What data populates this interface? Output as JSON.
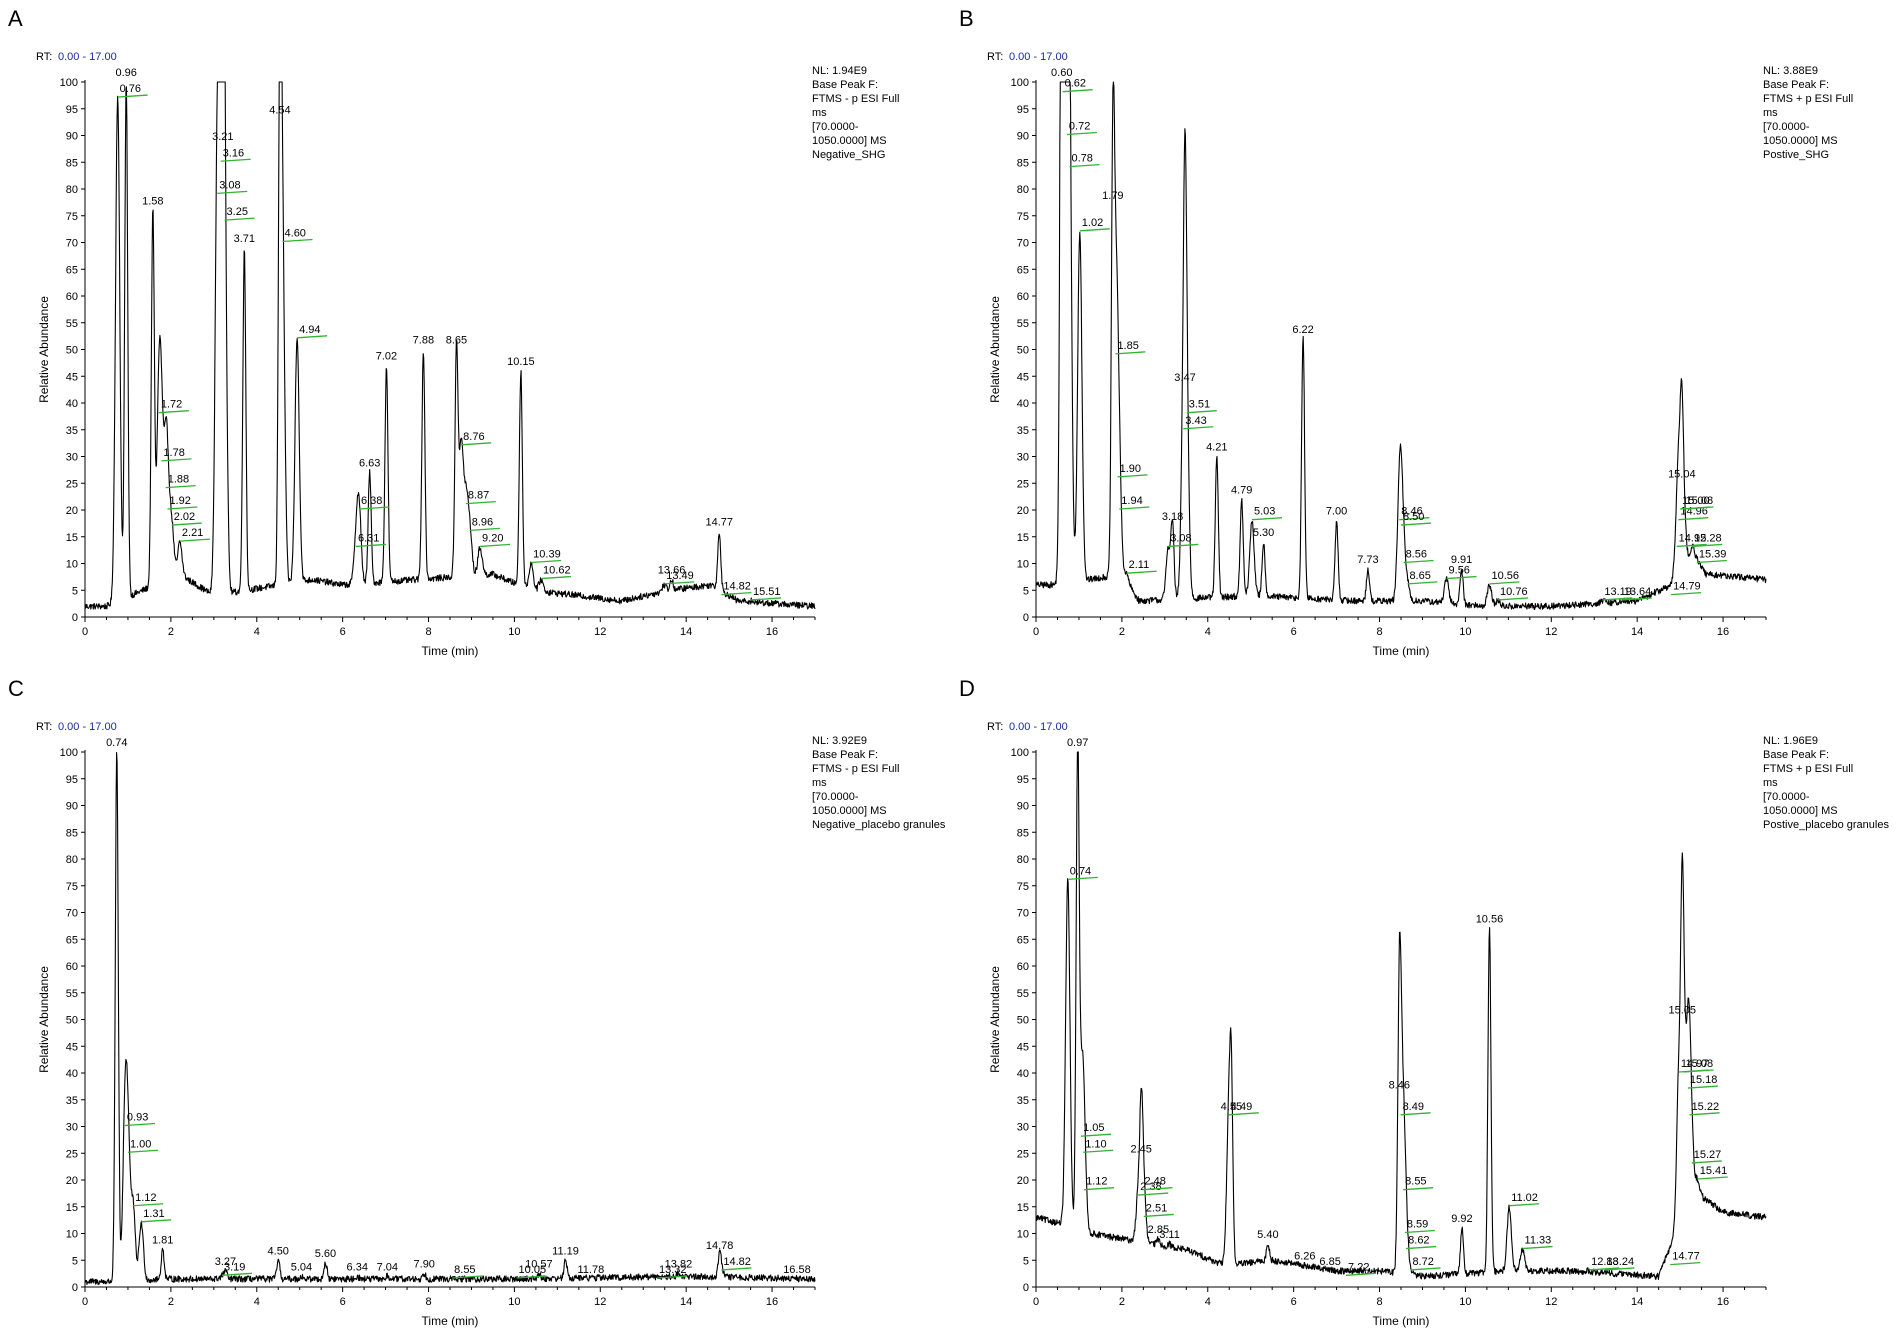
{
  "axis": {
    "xlabel": "Time (min)",
    "ylabel": "Relative Abundance",
    "rt_label": "RT:",
    "x_ticks": [
      0,
      2,
      4,
      6,
      8,
      10,
      12,
      14,
      16
    ],
    "y_ticks": [
      0,
      5,
      10,
      15,
      20,
      25,
      30,
      35,
      40,
      45,
      50,
      55,
      60,
      65,
      70,
      75,
      80,
      85,
      90,
      95,
      100
    ],
    "colors": {
      "trace": "#000000",
      "marker": "#2fb52f",
      "rt_range": "#1a2a9c"
    }
  },
  "chart_data": [
    {
      "panel": "A",
      "type": "line",
      "rt_range": "0.00 - 17.00",
      "info": [
        "NL: 1.94E9",
        "Base Peak F:",
        "FTMS - p ESI Full",
        "ms",
        "[70.0000-",
        "1050.0000]  MS",
        "Negative_SHG"
      ],
      "xlim": [
        0,
        17
      ],
      "ylim": [
        0,
        100
      ],
      "baseline": [
        [
          0,
          2
        ],
        [
          0.5,
          2
        ],
        [
          2.2,
          8
        ],
        [
          2.8,
          5
        ],
        [
          3.0,
          4
        ],
        [
          5.3,
          7
        ],
        [
          6.0,
          6
        ],
        [
          9.5,
          8
        ],
        [
          10.4,
          5
        ],
        [
          11.5,
          4
        ],
        [
          12.5,
          3
        ],
        [
          13.6,
          5
        ],
        [
          14.6,
          6
        ],
        [
          15.2,
          3
        ],
        [
          17,
          2
        ]
      ],
      "peaks": [
        {
          "label": "0.76",
          "x": 0.76,
          "y": 97,
          "m": 1
        },
        {
          "label": "0.96",
          "x": 0.96,
          "y": 100,
          "m": 0
        },
        {
          "label": "1.58",
          "x": 1.58,
          "y": 76,
          "m": 0
        },
        {
          "label": "1.72",
          "x": 1.72,
          "y": 38,
          "m": 1
        },
        {
          "label": "1.78",
          "x": 1.78,
          "y": 29,
          "m": 1
        },
        {
          "label": "1.88",
          "x": 1.88,
          "y": 24,
          "m": 1
        },
        {
          "label": "1.92",
          "x": 1.92,
          "y": 20,
          "m": 1
        },
        {
          "label": "2.02",
          "x": 2.02,
          "y": 17,
          "m": 1
        },
        {
          "label": "2.21",
          "x": 2.21,
          "y": 14,
          "m": 1
        },
        {
          "label": "3.08",
          "x": 3.08,
          "y": 79,
          "m": 1
        },
        {
          "label": "3.16",
          "x": 3.16,
          "y": 85,
          "m": 1
        },
        {
          "label": "3.21",
          "x": 3.21,
          "y": 88,
          "m": 0
        },
        {
          "label": "3.25",
          "x": 3.25,
          "y": 74,
          "m": 1
        },
        {
          "label": "3.71",
          "x": 3.71,
          "y": 69,
          "m": 0
        },
        {
          "label": "4.54",
          "x": 4.54,
          "y": 93,
          "m": 0
        },
        {
          "label": "4.60",
          "x": 4.6,
          "y": 70,
          "m": 1
        },
        {
          "label": "4.94",
          "x": 4.94,
          "y": 52,
          "m": 1
        },
        {
          "label": "6.31",
          "x": 6.31,
          "y": 13,
          "m": 1
        },
        {
          "label": "6.38",
          "x": 6.38,
          "y": 20,
          "m": 1
        },
        {
          "label": "6.63",
          "x": 6.63,
          "y": 27,
          "m": 0
        },
        {
          "label": "7.02",
          "x": 7.02,
          "y": 47,
          "m": 0
        },
        {
          "label": "7.88",
          "x": 7.88,
          "y": 50,
          "m": 0
        },
        {
          "label": "8.65",
          "x": 8.65,
          "y": 50,
          "m": 0
        },
        {
          "label": "8.76",
          "x": 8.76,
          "y": 32,
          "m": 1
        },
        {
          "label": "8.87",
          "x": 8.87,
          "y": 21,
          "m": 1
        },
        {
          "label": "8.96",
          "x": 8.96,
          "y": 16,
          "m": 1
        },
        {
          "label": "9.20",
          "x": 9.2,
          "y": 13,
          "m": 1
        },
        {
          "label": "10.15",
          "x": 10.15,
          "y": 46,
          "m": 0
        },
        {
          "label": "10.39",
          "x": 10.39,
          "y": 10,
          "m": 1
        },
        {
          "label": "10.62",
          "x": 10.62,
          "y": 7,
          "m": 1
        },
        {
          "label": "13.49",
          "x": 13.49,
          "y": 6,
          "m": 1
        },
        {
          "label": "13.66",
          "x": 13.66,
          "y": 7,
          "m": 0
        },
        {
          "label": "14.77",
          "x": 14.77,
          "y": 16,
          "m": 0
        },
        {
          "label": "14.82",
          "x": 14.82,
          "y": 4,
          "m": 1
        },
        {
          "label": "15.51",
          "x": 15.51,
          "y": 3,
          "m": 1
        }
      ]
    },
    {
      "panel": "B",
      "type": "line",
      "rt_range": "0.00 - 17.00",
      "info": [
        "NL: 3.88E9",
        "Base Peak F:",
        "FTMS + p ESI Full",
        "ms",
        "[70.0000-",
        "1050.0000]  MS",
        "Postive_SHG"
      ],
      "xlim": [
        0,
        17
      ],
      "ylim": [
        0,
        100
      ],
      "baseline": [
        [
          0,
          6
        ],
        [
          0.5,
          6
        ],
        [
          2.0,
          8
        ],
        [
          2.4,
          3
        ],
        [
          5.0,
          4
        ],
        [
          7.5,
          3
        ],
        [
          9.0,
          3
        ],
        [
          10.5,
          2
        ],
        [
          12.0,
          2
        ],
        [
          14.0,
          3
        ],
        [
          14.8,
          6
        ],
        [
          15.3,
          12
        ],
        [
          15.6,
          8
        ],
        [
          17,
          7
        ]
      ],
      "peaks": [
        {
          "label": "0.60",
          "x": 0.6,
          "y": 100,
          "m": 0
        },
        {
          "label": "0.62",
          "x": 0.62,
          "y": 98,
          "m": 1
        },
        {
          "label": "0.72",
          "x": 0.72,
          "y": 90,
          "m": 1
        },
        {
          "label": "0.78",
          "x": 0.78,
          "y": 84,
          "m": 1
        },
        {
          "label": "1.02",
          "x": 1.02,
          "y": 72,
          "m": 1
        },
        {
          "label": "1.79",
          "x": 1.79,
          "y": 77,
          "m": 0
        },
        {
          "label": "1.85",
          "x": 1.85,
          "y": 49,
          "m": 1
        },
        {
          "label": "1.90",
          "x": 1.9,
          "y": 26,
          "m": 1
        },
        {
          "label": "1.94",
          "x": 1.94,
          "y": 20,
          "m": 1
        },
        {
          "label": "2.11",
          "x": 2.11,
          "y": 8,
          "m": 1
        },
        {
          "label": "3.08",
          "x": 3.08,
          "y": 13,
          "m": 1
        },
        {
          "label": "3.18",
          "x": 3.18,
          "y": 17,
          "m": 0
        },
        {
          "label": "3.43",
          "x": 3.43,
          "y": 35,
          "m": 1
        },
        {
          "label": "3.47",
          "x": 3.47,
          "y": 43,
          "m": 0
        },
        {
          "label": "3.51",
          "x": 3.51,
          "y": 38,
          "m": 1
        },
        {
          "label": "4.21",
          "x": 4.21,
          "y": 30,
          "m": 0
        },
        {
          "label": "4.79",
          "x": 4.79,
          "y": 22,
          "m": 0
        },
        {
          "label": "5.03",
          "x": 5.03,
          "y": 18,
          "m": 1
        },
        {
          "label": "5.30",
          "x": 5.3,
          "y": 14,
          "m": 0
        },
        {
          "label": "6.22",
          "x": 6.22,
          "y": 52,
          "m": 0
        },
        {
          "label": "7.00",
          "x": 7.0,
          "y": 18,
          "m": 0
        },
        {
          "label": "7.73",
          "x": 7.73,
          "y": 9,
          "m": 0
        },
        {
          "label": "8.46",
          "x": 8.46,
          "y": 18,
          "m": 1
        },
        {
          "label": "8.50",
          "x": 8.5,
          "y": 17,
          "m": 1
        },
        {
          "label": "8.56",
          "x": 8.56,
          "y": 10,
          "m": 1
        },
        {
          "label": "8.65",
          "x": 8.65,
          "y": 6,
          "m": 1
        },
        {
          "label": "9.56",
          "x": 9.56,
          "y": 7,
          "m": 1
        },
        {
          "label": "9.91",
          "x": 9.91,
          "y": 9,
          "m": 0
        },
        {
          "label": "10.56",
          "x": 10.56,
          "y": 6,
          "m": 1
        },
        {
          "label": "10.76",
          "x": 10.76,
          "y": 3,
          "m": 1
        },
        {
          "label": "13.19",
          "x": 13.19,
          "y": 3,
          "m": 1
        },
        {
          "label": "13.64",
          "x": 13.64,
          "y": 3,
          "m": 1
        },
        {
          "label": "14.79",
          "x": 14.79,
          "y": 4,
          "m": 1
        },
        {
          "label": "14.92",
          "x": 14.92,
          "y": 13,
          "m": 1
        },
        {
          "label": "14.96",
          "x": 14.96,
          "y": 18,
          "m": 1
        },
        {
          "label": "15.00",
          "x": 15.0,
          "y": 20,
          "m": 1
        },
        {
          "label": "15.04",
          "x": 15.04,
          "y": 25,
          "m": 0
        },
        {
          "label": "15.08",
          "x": 15.08,
          "y": 20,
          "m": 1
        },
        {
          "label": "15.28",
          "x": 15.28,
          "y": 13,
          "m": 1
        },
        {
          "label": "15.39",
          "x": 15.39,
          "y": 10,
          "m": 1
        }
      ]
    },
    {
      "panel": "C",
      "type": "line",
      "rt_range": "0.00 - 17.00",
      "info": [
        "NL: 3.92E9",
        "Base Peak F:",
        "FTMS - p ESI Full",
        "ms",
        "[70.0000-",
        "1050.0000]  MS",
        "Negative_placebo granules"
      ],
      "xlim": [
        0,
        17
      ],
      "ylim": [
        0,
        100
      ],
      "baseline": [
        [
          0,
          1
        ],
        [
          0.6,
          1
        ],
        [
          2.0,
          1.5
        ],
        [
          6.0,
          1.5
        ],
        [
          10.0,
          1.5
        ],
        [
          14.0,
          2
        ],
        [
          17,
          1.5
        ]
      ],
      "peaks": [
        {
          "label": "0.74",
          "x": 0.74,
          "y": 100,
          "m": 0
        },
        {
          "label": "0.93",
          "x": 0.93,
          "y": 30,
          "m": 1
        },
        {
          "label": "1.00",
          "x": 1.0,
          "y": 25,
          "m": 1
        },
        {
          "label": "1.12",
          "x": 1.12,
          "y": 15,
          "m": 1
        },
        {
          "label": "1.31",
          "x": 1.31,
          "y": 12,
          "m": 1
        },
        {
          "label": "1.81",
          "x": 1.81,
          "y": 7,
          "m": 0
        },
        {
          "label": "3.19",
          "x": 3.19,
          "y": 2,
          "m": 1
        },
        {
          "label": "3.27",
          "x": 3.27,
          "y": 3,
          "m": 0
        },
        {
          "label": "4.50",
          "x": 4.5,
          "y": 5,
          "m": 0
        },
        {
          "label": "5.04",
          "x": 5.04,
          "y": 2,
          "m": 0
        },
        {
          "label": "5.60",
          "x": 5.6,
          "y": 4.5,
          "m": 0
        },
        {
          "label": "6.34",
          "x": 6.34,
          "y": 2,
          "m": 0
        },
        {
          "label": "7.04",
          "x": 7.04,
          "y": 2,
          "m": 0
        },
        {
          "label": "7.90",
          "x": 7.9,
          "y": 2.5,
          "m": 0
        },
        {
          "label": "8.55",
          "x": 8.55,
          "y": 1.5,
          "m": 1
        },
        {
          "label": "10.05",
          "x": 10.05,
          "y": 1.5,
          "m": 1
        },
        {
          "label": "10.57",
          "x": 10.57,
          "y": 2.5,
          "m": 0
        },
        {
          "label": "11.19",
          "x": 11.19,
          "y": 5,
          "m": 0
        },
        {
          "label": "11.78",
          "x": 11.78,
          "y": 1.5,
          "m": 0
        },
        {
          "label": "13.32",
          "x": 13.32,
          "y": 1.5,
          "m": 1
        },
        {
          "label": "13.82",
          "x": 13.82,
          "y": 2.5,
          "m": 0
        },
        {
          "label": "14.78",
          "x": 14.78,
          "y": 6,
          "m": 0
        },
        {
          "label": "14.82",
          "x": 14.82,
          "y": 3,
          "m": 1
        },
        {
          "label": "16.58",
          "x": 16.58,
          "y": 1.5,
          "m": 0
        }
      ]
    },
    {
      "panel": "D",
      "type": "line",
      "rt_range": "0.00 - 17.00",
      "info": [
        "NL: 1.96E9",
        "Base Peak F:",
        "FTMS + p ESI Full",
        "ms",
        "[70.0000-",
        "1050.0000]  MS",
        "Postive_placebo granules"
      ],
      "xlim": [
        0,
        17
      ],
      "ylim": [
        0,
        100
      ],
      "baseline": [
        [
          0,
          13
        ],
        [
          0.5,
          12
        ],
        [
          1.3,
          10
        ],
        [
          2.0,
          9
        ],
        [
          3.5,
          7
        ],
        [
          4.4,
          4
        ],
        [
          5.5,
          5
        ],
        [
          7.0,
          3
        ],
        [
          8.0,
          3
        ],
        [
          9.0,
          2
        ],
        [
          11.0,
          3
        ],
        [
          12.5,
          3
        ],
        [
          14.5,
          2
        ],
        [
          15.3,
          18
        ],
        [
          16.0,
          14
        ],
        [
          17,
          13
        ]
      ],
      "peaks": [
        {
          "label": "0.74",
          "x": 0.74,
          "y": 76,
          "m": 1
        },
        {
          "label": "0.97",
          "x": 0.97,
          "y": 100,
          "m": 0
        },
        {
          "label": "1.05",
          "x": 1.05,
          "y": 28,
          "m": 1
        },
        {
          "label": "1.10",
          "x": 1.1,
          "y": 25,
          "m": 1
        },
        {
          "label": "1.12",
          "x": 1.12,
          "y": 18,
          "m": 1
        },
        {
          "label": "2.38",
          "x": 2.38,
          "y": 17,
          "m": 1
        },
        {
          "label": "2.45",
          "x": 2.45,
          "y": 24,
          "m": 0
        },
        {
          "label": "2.48",
          "x": 2.48,
          "y": 18,
          "m": 1
        },
        {
          "label": "2.51",
          "x": 2.51,
          "y": 13,
          "m": 1
        },
        {
          "label": "2.85",
          "x": 2.85,
          "y": 9,
          "m": 0
        },
        {
          "label": "3.11",
          "x": 3.11,
          "y": 8,
          "m": 0
        },
        {
          "label": "4.49",
          "x": 4.49,
          "y": 32,
          "m": 1
        },
        {
          "label": "4.55",
          "x": 4.55,
          "y": 32,
          "m": 0
        },
        {
          "label": "5.40",
          "x": 5.4,
          "y": 8,
          "m": 0
        },
        {
          "label": "6.26",
          "x": 6.26,
          "y": 4,
          "m": 0
        },
        {
          "label": "6.85",
          "x": 6.85,
          "y": 3,
          "m": 0
        },
        {
          "label": "7.22",
          "x": 7.22,
          "y": 2,
          "m": 1
        },
        {
          "label": "8.46",
          "x": 8.46,
          "y": 36,
          "m": 0
        },
        {
          "label": "8.49",
          "x": 8.49,
          "y": 32,
          "m": 1
        },
        {
          "label": "8.55",
          "x": 8.55,
          "y": 18,
          "m": 1
        },
        {
          "label": "8.59",
          "x": 8.59,
          "y": 10,
          "m": 1
        },
        {
          "label": "8.62",
          "x": 8.62,
          "y": 7,
          "m": 1
        },
        {
          "label": "8.72",
          "x": 8.72,
          "y": 3,
          "m": 1
        },
        {
          "label": "9.92",
          "x": 9.92,
          "y": 11,
          "m": 0
        },
        {
          "label": "10.56",
          "x": 10.56,
          "y": 67,
          "m": 0
        },
        {
          "label": "11.02",
          "x": 11.02,
          "y": 15,
          "m": 1
        },
        {
          "label": "11.33",
          "x": 11.33,
          "y": 7,
          "m": 1
        },
        {
          "label": "12.88",
          "x": 12.88,
          "y": 3,
          "m": 1
        },
        {
          "label": "13.24",
          "x": 13.24,
          "y": 3,
          "m": 1
        },
        {
          "label": "14.77",
          "x": 14.77,
          "y": 4,
          "m": 1
        },
        {
          "label": "14.97",
          "x": 14.97,
          "y": 40,
          "m": 1
        },
        {
          "label": "15.05",
          "x": 15.05,
          "y": 50,
          "m": 0
        },
        {
          "label": "15.08",
          "x": 15.08,
          "y": 40,
          "m": 1
        },
        {
          "label": "15.18",
          "x": 15.18,
          "y": 37,
          "m": 1
        },
        {
          "label": "15.22",
          "x": 15.22,
          "y": 32,
          "m": 1
        },
        {
          "label": "15.27",
          "x": 15.27,
          "y": 23,
          "m": 1
        },
        {
          "label": "15.41",
          "x": 15.41,
          "y": 20,
          "m": 1
        }
      ]
    }
  ]
}
